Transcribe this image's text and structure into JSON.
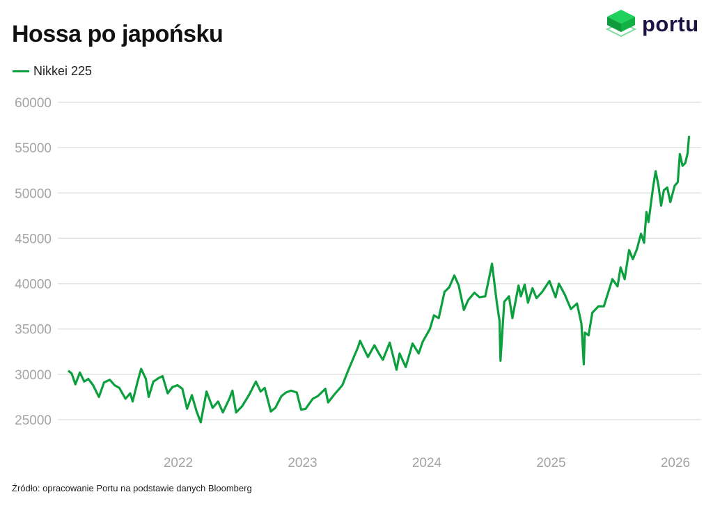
{
  "logo": {
    "text": "portu",
    "color": "#1c1445",
    "accent": "#14b04a"
  },
  "chart_data": {
    "type": "line",
    "title": "Hossa po japońsku",
    "source": "Źródło: opracowanie Portu na podstawie danych Bloomberg",
    "xlabel": "",
    "ylabel": "",
    "ylim": [
      25000,
      60000
    ],
    "yticks": [
      "25000",
      "30000",
      "35000",
      "40000",
      "45000",
      "50000",
      "55000",
      "60000"
    ],
    "xticks": [
      "2022",
      "2023",
      "2024",
      "2025",
      "2026"
    ],
    "grid": "horizontal",
    "legend": "top-left",
    "series": [
      {
        "name": "Nikkei 225",
        "color": "#0c9f3e",
        "points": [
          [
            "2021-02-12",
            30400
          ],
          [
            "2021-02-22",
            30100
          ],
          [
            "2021-03-05",
            28900
          ],
          [
            "2021-03-18",
            30200
          ],
          [
            "2021-03-31",
            29200
          ],
          [
            "2021-04-12",
            29500
          ],
          [
            "2021-04-26",
            28800
          ],
          [
            "2021-05-13",
            27500
          ],
          [
            "2021-05-28",
            29100
          ],
          [
            "2021-06-14",
            29400
          ],
          [
            "2021-06-28",
            28800
          ],
          [
            "2021-07-12",
            28500
          ],
          [
            "2021-07-30",
            27300
          ],
          [
            "2021-08-13",
            27900
          ],
          [
            "2021-08-20",
            27000
          ],
          [
            "2021-09-03",
            29100
          ],
          [
            "2021-09-14",
            30600
          ],
          [
            "2021-09-28",
            29500
          ],
          [
            "2021-10-06",
            27500
          ],
          [
            "2021-10-20",
            29200
          ],
          [
            "2021-11-05",
            29600
          ],
          [
            "2021-11-16",
            29800
          ],
          [
            "2021-12-01",
            27900
          ],
          [
            "2021-12-15",
            28600
          ],
          [
            "2021-12-30",
            28800
          ],
          [
            "2022-01-13",
            28400
          ],
          [
            "2022-01-27",
            26200
          ],
          [
            "2022-02-10",
            27700
          ],
          [
            "2022-02-24",
            25900
          ],
          [
            "2022-03-08",
            24700
          ],
          [
            "2022-03-25",
            28100
          ],
          [
            "2022-04-12",
            26300
          ],
          [
            "2022-04-28",
            27000
          ],
          [
            "2022-05-12",
            25800
          ],
          [
            "2022-05-31",
            27300
          ],
          [
            "2022-06-09",
            28200
          ],
          [
            "2022-06-20",
            25800
          ],
          [
            "2022-07-08",
            26500
          ],
          [
            "2022-07-29",
            27800
          ],
          [
            "2022-08-17",
            29200
          ],
          [
            "2022-08-31",
            28100
          ],
          [
            "2022-09-12",
            28500
          ],
          [
            "2022-09-30",
            25900
          ],
          [
            "2022-10-13",
            26300
          ],
          [
            "2022-10-31",
            27600
          ],
          [
            "2022-11-14",
            28000
          ],
          [
            "2022-11-28",
            28200
          ],
          [
            "2022-12-15",
            28000
          ],
          [
            "2022-12-28",
            26100
          ],
          [
            "2023-01-10",
            26200
          ],
          [
            "2023-01-31",
            27300
          ],
          [
            "2023-02-15",
            27600
          ],
          [
            "2023-03-09",
            28400
          ],
          [
            "2023-03-17",
            26900
          ],
          [
            "2023-04-05",
            27800
          ],
          [
            "2023-04-28",
            28800
          ],
          [
            "2023-05-17",
            30600
          ],
          [
            "2023-06-13",
            33000
          ],
          [
            "2023-06-19",
            33700
          ],
          [
            "2023-06-28",
            33000
          ],
          [
            "2023-07-12",
            31900
          ],
          [
            "2023-07-31",
            33200
          ],
          [
            "2023-08-15",
            32200
          ],
          [
            "2023-08-25",
            31600
          ],
          [
            "2023-09-14",
            33500
          ],
          [
            "2023-10-04",
            30500
          ],
          [
            "2023-10-13",
            32300
          ],
          [
            "2023-10-31",
            30800
          ],
          [
            "2023-11-20",
            33400
          ],
          [
            "2023-12-08",
            32300
          ],
          [
            "2023-12-20",
            33600
          ],
          [
            "2024-01-10",
            35000
          ],
          [
            "2024-01-22",
            36500
          ],
          [
            "2024-02-05",
            36200
          ],
          [
            "2024-02-22",
            39100
          ],
          [
            "2024-03-07",
            39600
          ],
          [
            "2024-03-22",
            40900
          ],
          [
            "2024-04-04",
            39800
          ],
          [
            "2024-04-19",
            37100
          ],
          [
            "2024-05-02",
            38200
          ],
          [
            "2024-05-20",
            39000
          ],
          [
            "2024-06-04",
            38500
          ],
          [
            "2024-06-21",
            38600
          ],
          [
            "2024-07-04",
            40900
          ],
          [
            "2024-07-11",
            42200
          ],
          [
            "2024-07-25",
            37900
          ],
          [
            "2024-08-02",
            35900
          ],
          [
            "2024-08-05",
            31500
          ],
          [
            "2024-08-16",
            38000
          ],
          [
            "2024-08-30",
            38600
          ],
          [
            "2024-09-09",
            36200
          ],
          [
            "2024-09-27",
            39800
          ],
          [
            "2024-10-04",
            38600
          ],
          [
            "2024-10-15",
            39900
          ],
          [
            "2024-10-25",
            37900
          ],
          [
            "2024-11-07",
            39500
          ],
          [
            "2024-11-19",
            38400
          ],
          [
            "2024-12-06",
            39100
          ],
          [
            "2024-12-27",
            40300
          ],
          [
            "2025-01-14",
            38500
          ],
          [
            "2025-01-24",
            40000
          ],
          [
            "2025-02-10",
            38800
          ],
          [
            "2025-02-28",
            37200
          ],
          [
            "2025-03-18",
            37800
          ],
          [
            "2025-03-31",
            35600
          ],
          [
            "2025-04-07",
            31100
          ],
          [
            "2025-04-10",
            34600
          ],
          [
            "2025-04-21",
            34300
          ],
          [
            "2025-05-02",
            36800
          ],
          [
            "2025-05-20",
            37500
          ],
          [
            "2025-06-05",
            37500
          ],
          [
            "2025-06-30",
            40500
          ],
          [
            "2025-07-15",
            39700
          ],
          [
            "2025-07-24",
            41800
          ],
          [
            "2025-08-05",
            40500
          ],
          [
            "2025-08-18",
            43700
          ],
          [
            "2025-08-29",
            42700
          ],
          [
            "2025-09-10",
            43800
          ],
          [
            "2025-09-22",
            45500
          ],
          [
            "2025-10-01",
            44500
          ],
          [
            "2025-10-08",
            47900
          ],
          [
            "2025-10-14",
            46800
          ],
          [
            "2025-10-27",
            50500
          ],
          [
            "2025-11-04",
            52400
          ],
          [
            "2025-11-12",
            50900
          ],
          [
            "2025-11-20",
            48600
          ],
          [
            "2025-11-28",
            50300
          ],
          [
            "2025-12-08",
            50600
          ],
          [
            "2025-12-17",
            49000
          ],
          [
            "2025-12-30",
            50800
          ],
          [
            "2026-01-08",
            51200
          ],
          [
            "2026-01-14",
            54300
          ],
          [
            "2026-01-22",
            53000
          ],
          [
            "2026-01-30",
            53300
          ],
          [
            "2026-02-06",
            54400
          ],
          [
            "2026-02-10",
            56300
          ]
        ]
      }
    ]
  }
}
